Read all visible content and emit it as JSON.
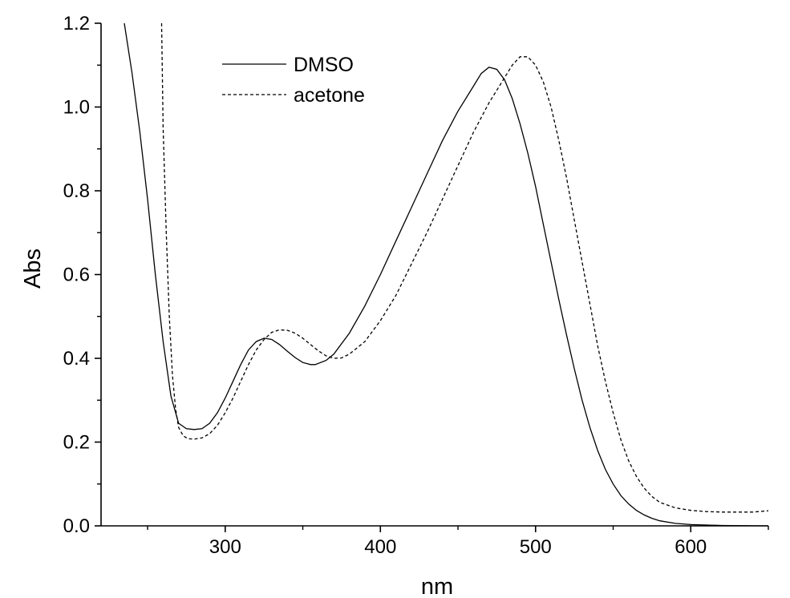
{
  "chart_data": {
    "type": "line",
    "xlabel": "nm",
    "ylabel": "Abs",
    "xlim": [
      220,
      650
    ],
    "ylim": [
      0.0,
      1.2
    ],
    "x_ticks": [
      300,
      400,
      500,
      600
    ],
    "x_tick_labels": [
      "300",
      "400",
      "500",
      "600"
    ],
    "y_ticks": [
      0.0,
      0.2,
      0.4,
      0.6,
      0.8,
      1.0,
      1.2
    ],
    "y_tick_labels": [
      "0.0",
      "0.2",
      "0.4",
      "0.6",
      "0.8",
      "1.0",
      "1.2"
    ],
    "grid": false,
    "legend_position": "top-left",
    "series": [
      {
        "name": "DMSO",
        "style": "solid",
        "color": "#000000",
        "points": [
          [
            235,
            1.2
          ],
          [
            240,
            1.08
          ],
          [
            245,
            0.94
          ],
          [
            250,
            0.78
          ],
          [
            255,
            0.6
          ],
          [
            260,
            0.44
          ],
          [
            265,
            0.31
          ],
          [
            270,
            0.245
          ],
          [
            275,
            0.232
          ],
          [
            280,
            0.23
          ],
          [
            285,
            0.232
          ],
          [
            290,
            0.245
          ],
          [
            295,
            0.27
          ],
          [
            300,
            0.305
          ],
          [
            305,
            0.345
          ],
          [
            310,
            0.385
          ],
          [
            315,
            0.42
          ],
          [
            320,
            0.44
          ],
          [
            325,
            0.448
          ],
          [
            330,
            0.445
          ],
          [
            335,
            0.433
          ],
          [
            340,
            0.417
          ],
          [
            345,
            0.402
          ],
          [
            350,
            0.39
          ],
          [
            355,
            0.385
          ],
          [
            358,
            0.385
          ],
          [
            365,
            0.395
          ],
          [
            370,
            0.41
          ],
          [
            380,
            0.46
          ],
          [
            390,
            0.525
          ],
          [
            400,
            0.6
          ],
          [
            410,
            0.68
          ],
          [
            420,
            0.76
          ],
          [
            430,
            0.84
          ],
          [
            440,
            0.92
          ],
          [
            450,
            0.99
          ],
          [
            460,
            1.05
          ],
          [
            465,
            1.08
          ],
          [
            470,
            1.095
          ],
          [
            475,
            1.09
          ],
          [
            480,
            1.065
          ],
          [
            485,
            1.02
          ],
          [
            490,
            0.96
          ],
          [
            495,
            0.89
          ],
          [
            500,
            0.81
          ],
          [
            505,
            0.72
          ],
          [
            510,
            0.63
          ],
          [
            515,
            0.54
          ],
          [
            520,
            0.455
          ],
          [
            525,
            0.375
          ],
          [
            530,
            0.3
          ],
          [
            535,
            0.235
          ],
          [
            540,
            0.18
          ],
          [
            545,
            0.135
          ],
          [
            550,
            0.1
          ],
          [
            555,
            0.072
          ],
          [
            560,
            0.052
          ],
          [
            565,
            0.037
          ],
          [
            570,
            0.026
          ],
          [
            575,
            0.018
          ],
          [
            580,
            0.012
          ],
          [
            590,
            0.006
          ],
          [
            600,
            0.003
          ],
          [
            620,
            0.001
          ],
          [
            650,
            0.0
          ]
        ]
      },
      {
        "name": "acetone",
        "style": "dashed",
        "color": "#000000",
        "points": [
          [
            259,
            1.2
          ],
          [
            260,
            0.95
          ],
          [
            262,
            0.7
          ],
          [
            264,
            0.5
          ],
          [
            266,
            0.36
          ],
          [
            268,
            0.28
          ],
          [
            270,
            0.235
          ],
          [
            273,
            0.215
          ],
          [
            276,
            0.208
          ],
          [
            280,
            0.207
          ],
          [
            285,
            0.21
          ],
          [
            290,
            0.22
          ],
          [
            295,
            0.24
          ],
          [
            300,
            0.27
          ],
          [
            305,
            0.305
          ],
          [
            310,
            0.345
          ],
          [
            315,
            0.385
          ],
          [
            320,
            0.42
          ],
          [
            325,
            0.445
          ],
          [
            330,
            0.462
          ],
          [
            335,
            0.468
          ],
          [
            340,
            0.467
          ],
          [
            345,
            0.46
          ],
          [
            350,
            0.448
          ],
          [
            355,
            0.433
          ],
          [
            360,
            0.418
          ],
          [
            365,
            0.406
          ],
          [
            370,
            0.4
          ],
          [
            375,
            0.401
          ],
          [
            380,
            0.41
          ],
          [
            390,
            0.44
          ],
          [
            400,
            0.49
          ],
          [
            410,
            0.55
          ],
          [
            420,
            0.625
          ],
          [
            430,
            0.7
          ],
          [
            440,
            0.78
          ],
          [
            450,
            0.86
          ],
          [
            460,
            0.94
          ],
          [
            470,
            1.01
          ],
          [
            480,
            1.07
          ],
          [
            485,
            1.1
          ],
          [
            490,
            1.12
          ],
          [
            495,
            1.12
          ],
          [
            500,
            1.1
          ],
          [
            505,
            1.06
          ],
          [
            510,
            1.0
          ],
          [
            515,
            0.92
          ],
          [
            520,
            0.83
          ],
          [
            525,
            0.73
          ],
          [
            530,
            0.63
          ],
          [
            535,
            0.53
          ],
          [
            540,
            0.43
          ],
          [
            545,
            0.345
          ],
          [
            550,
            0.27
          ],
          [
            555,
            0.205
          ],
          [
            560,
            0.155
          ],
          [
            565,
            0.118
          ],
          [
            570,
            0.09
          ],
          [
            575,
            0.07
          ],
          [
            580,
            0.056
          ],
          [
            590,
            0.043
          ],
          [
            600,
            0.037
          ],
          [
            610,
            0.034
          ],
          [
            620,
            0.033
          ],
          [
            630,
            0.033
          ],
          [
            640,
            0.033
          ],
          [
            650,
            0.036
          ]
        ]
      }
    ]
  }
}
